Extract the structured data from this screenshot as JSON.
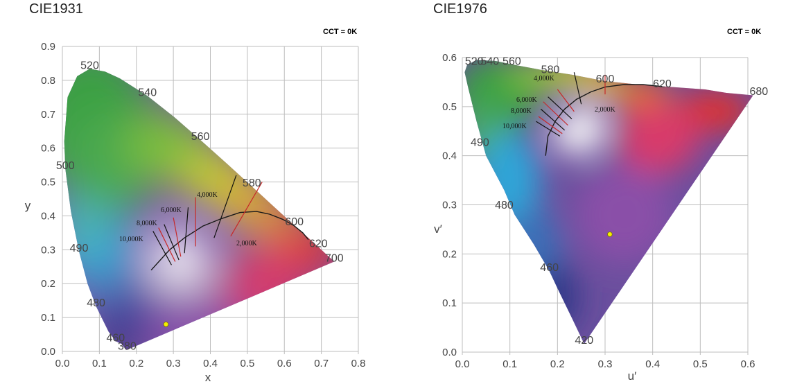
{
  "chart_data": [
    {
      "type": "scatter",
      "title": "CIE1931",
      "annotation": "CCT = 0K",
      "xlabel": "x",
      "ylabel": "y",
      "xlim": [
        0.0,
        0.8
      ],
      "ylim": [
        0.0,
        0.9
      ],
      "x_ticks": [
        "0.0",
        "0.1",
        "0.2",
        "0.3",
        "0.4",
        "0.5",
        "0.6",
        "0.7",
        "0.8"
      ],
      "y_ticks": [
        "0.0",
        "0.1",
        "0.2",
        "0.3",
        "0.4",
        "0.5",
        "0.6",
        "0.7",
        "0.8",
        "0.9"
      ],
      "wavelength_labels": [
        {
          "text": "380",
          "x": 0.175,
          "y": 0.005
        },
        {
          "text": "460",
          "x": 0.144,
          "y": 0.03
        },
        {
          "text": "480",
          "x": 0.091,
          "y": 0.133
        },
        {
          "text": "490",
          "x": 0.045,
          "y": 0.295
        },
        {
          "text": "500",
          "x": 0.008,
          "y": 0.538
        },
        {
          "text": "520",
          "x": 0.074,
          "y": 0.834
        },
        {
          "text": "540",
          "x": 0.23,
          "y": 0.754
        },
        {
          "text": "560",
          "x": 0.373,
          "y": 0.624
        },
        {
          "text": "580",
          "x": 0.512,
          "y": 0.487
        },
        {
          "text": "600",
          "x": 0.627,
          "y": 0.372
        },
        {
          "text": "620",
          "x": 0.692,
          "y": 0.308
        },
        {
          "text": "700",
          "x": 0.735,
          "y": 0.265
        }
      ],
      "cct_labels": [
        "4,000K",
        "6,000K",
        "8,000K",
        "10,000K",
        "2,000K"
      ],
      "point": {
        "x": 0.28,
        "y": 0.08
      }
    },
    {
      "type": "scatter",
      "title": "CIE1976",
      "annotation": "CCT = 0K",
      "xlabel": "u′",
      "ylabel": "v′",
      "xlim": [
        0.0,
        0.6
      ],
      "ylim": [
        0.0,
        0.6
      ],
      "x_ticks": [
        "0.0",
        "0.1",
        "0.2",
        "0.3",
        "0.4",
        "0.5",
        "0.6"
      ],
      "y_ticks": [
        "0.0",
        "0.1",
        "0.2",
        "0.3",
        "0.4",
        "0.5",
        "0.6"
      ],
      "wavelength_labels": [
        {
          "text": "420",
          "x": 0.256,
          "y": 0.017
        },
        {
          "text": "460",
          "x": 0.183,
          "y": 0.165
        },
        {
          "text": "480",
          "x": 0.088,
          "y": 0.292
        },
        {
          "text": "490",
          "x": 0.037,
          "y": 0.42
        },
        {
          "text": "520",
          "x": 0.025,
          "y": 0.585
        },
        {
          "text": "540",
          "x": 0.058,
          "y": 0.585
        },
        {
          "text": "560",
          "x": 0.104,
          "y": 0.585
        },
        {
          "text": "580",
          "x": 0.185,
          "y": 0.568
        },
        {
          "text": "600",
          "x": 0.3,
          "y": 0.549
        },
        {
          "text": "620",
          "x": 0.42,
          "y": 0.539
        },
        {
          "text": "680",
          "x": 0.623,
          "y": 0.524
        }
      ],
      "cct_labels": [
        "4,000K",
        "6,000K",
        "8,000K",
        "10,000K",
        "2,000K"
      ],
      "point": {
        "x": 0.31,
        "y": 0.24
      }
    }
  ]
}
